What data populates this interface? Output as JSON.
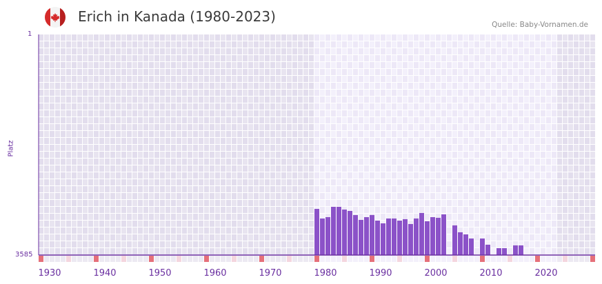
{
  "header": {
    "title": "Erich in Kanada (1980-2023)",
    "source": "Quelle: Baby-Vornamen.de",
    "flag_icon": "canada-flag-icon"
  },
  "chart_data": {
    "type": "bar",
    "title": "Erich in Kanada (1980-2023)",
    "ylabel": "Platz",
    "yticks": [
      "1",
      "3585"
    ],
    "ylim": [
      3585,
      1
    ],
    "xlim": [
      1930,
      2030
    ],
    "xticks": [
      "1930",
      "1940",
      "1950",
      "1960",
      "1970",
      "1980",
      "1990",
      "2000",
      "2010",
      "2020"
    ],
    "highlight_range": [
      1980,
      2023
    ],
    "bar_color": "#8b52c8",
    "x": [
      1980,
      1981,
      1982,
      1983,
      1984,
      1985,
      1986,
      1987,
      1988,
      1989,
      1990,
      1991,
      1992,
      1993,
      1994,
      1995,
      1996,
      1997,
      1998,
      1999,
      2000,
      2001,
      2002,
      2003,
      2004,
      2005,
      2006,
      2007,
      2008,
      2009,
      2010,
      2011,
      2012,
      2013,
      2014,
      2015,
      2016,
      2017
    ],
    "values": [
      2835,
      2991,
      2969,
      2801,
      2801,
      2846,
      2868,
      2935,
      3014,
      2969,
      2935,
      3025,
      3070,
      2991,
      2991,
      3025,
      3002,
      3081,
      2991,
      2902,
      3036,
      2969,
      2980,
      2924,
      null,
      3103,
      3215,
      3249,
      3316,
      null,
      3316,
      3417,
      null,
      3473,
      3473,
      null,
      3428,
      3428
    ]
  }
}
